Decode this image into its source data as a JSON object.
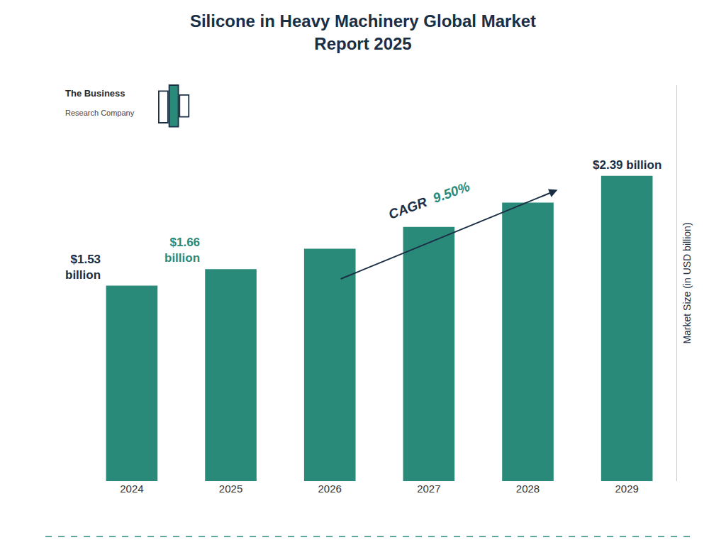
{
  "chart_data": {
    "type": "bar",
    "title": "Silicone in Heavy Machinery Global Market\nReport 2025",
    "categories": [
      "2024",
      "2025",
      "2026",
      "2027",
      "2028",
      "2029"
    ],
    "values": [
      1.53,
      1.66,
      1.82,
      1.99,
      2.18,
      2.39
    ],
    "color": "#2a8a7a",
    "ylabel": "Market Size (in USD billion)",
    "ylim": [
      0,
      3.1
    ],
    "grid": false,
    "tick_labels": "x",
    "data_labels": true,
    "value_labels": [
      "$1.53\nbillion",
      "$1.66\nbillion",
      null,
      null,
      null,
      "$2.39 billion"
    ],
    "annotations": [
      "CAGR",
      "9.50%",
      "The Business",
      "Research Company"
    ]
  }
}
